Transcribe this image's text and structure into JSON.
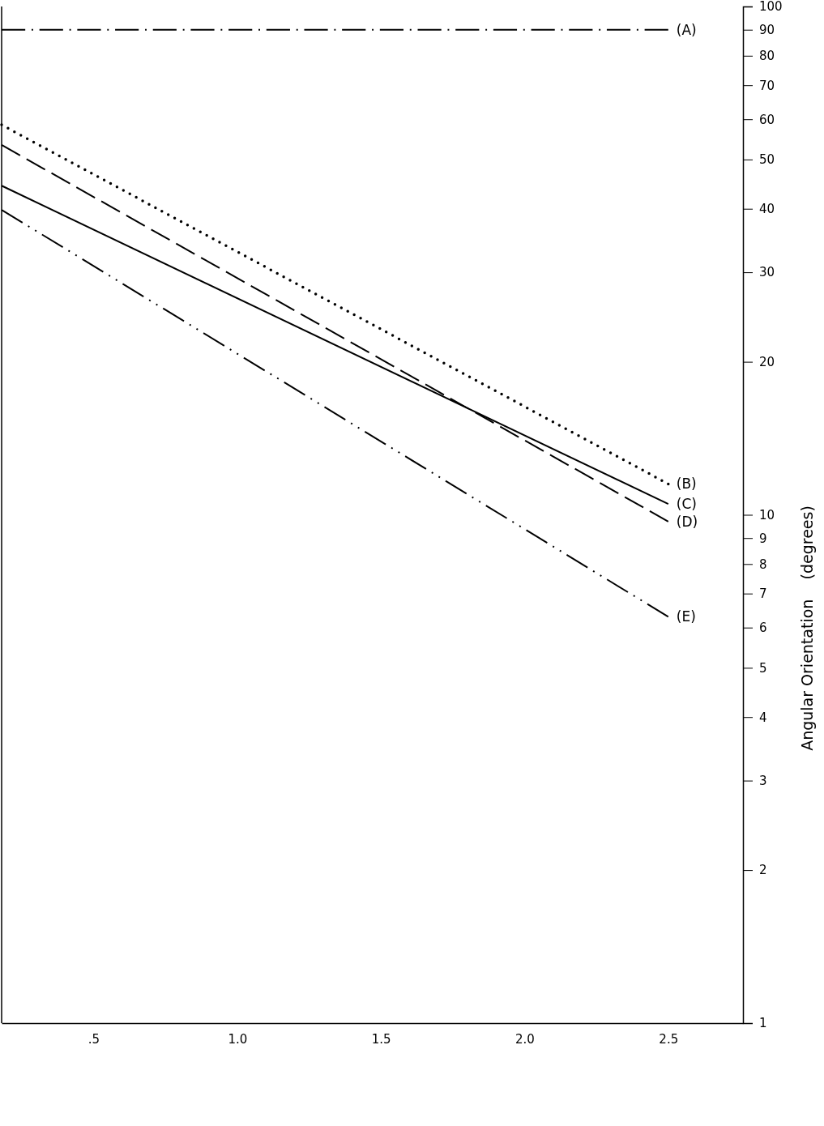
{
  "chart_data": {
    "type": "line",
    "ylabel": "Angular Orientation    (degrees)",
    "log": "y",
    "xlim": [
      0.18,
      2.76
    ],
    "xticks": [
      {
        "value": 0.5,
        "label": ".5"
      },
      {
        "value": 1.0,
        "label": "1.0"
      },
      {
        "value": 1.5,
        "label": "1.5"
      },
      {
        "value": 2.0,
        "label": "2.0"
      },
      {
        "value": 2.5,
        "label": "2.5"
      }
    ],
    "ylim": [
      1,
      100
    ],
    "yticks": [
      1,
      2,
      3,
      4,
      5,
      6,
      7,
      8,
      9,
      10,
      20,
      30,
      40,
      50,
      60,
      70,
      80,
      90,
      100
    ],
    "x": [
      0.18,
      2.5
    ],
    "grid": false,
    "legend": false,
    "series": [
      {
        "name": "(A)",
        "color": "#000000",
        "line_style": "dashdot",
        "values": [
          90,
          90
        ]
      },
      {
        "name": "(B)",
        "color": "#000000",
        "line_style": "dotted",
        "values": [
          58.5,
          11.5
        ]
      },
      {
        "name": "(C)",
        "color": "#000000",
        "line_style": "solid",
        "values": [
          44.4,
          10.5
        ]
      },
      {
        "name": "(D)",
        "color": "#000000",
        "line_style": "dashed",
        "values": [
          53.4,
          9.7
        ]
      },
      {
        "name": "(E)",
        "color": "#000000",
        "line_style": "dashdotdot",
        "values": [
          39.8,
          6.3
        ]
      }
    ]
  }
}
